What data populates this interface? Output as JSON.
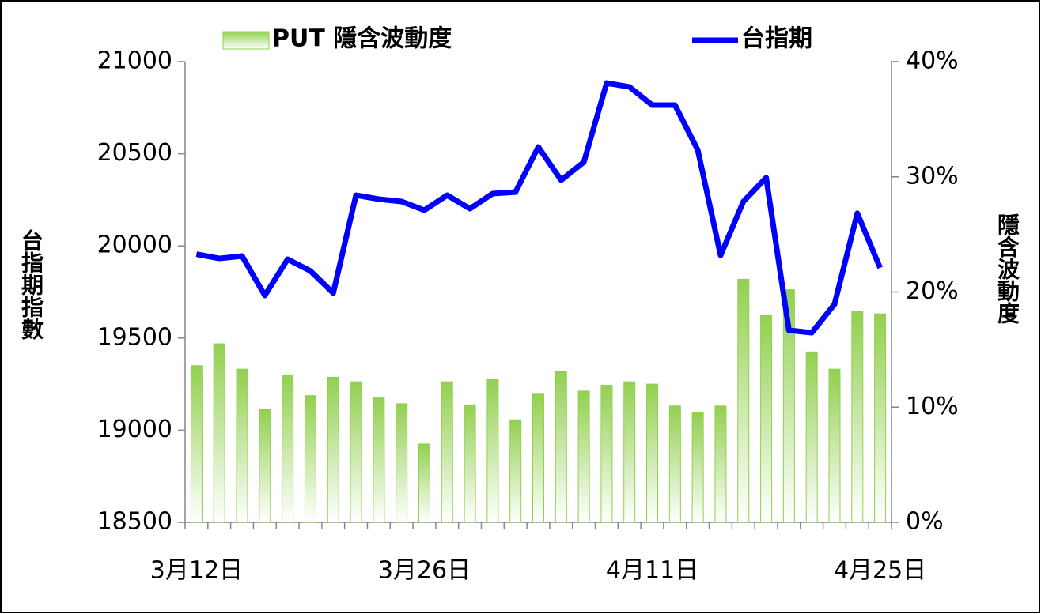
{
  "chart_data": {
    "type": "bar_line",
    "categories": [
      "3月12日",
      null,
      null,
      null,
      null,
      null,
      null,
      null,
      null,
      null,
      "3月26日",
      null,
      null,
      null,
      null,
      null,
      null,
      null,
      null,
      null,
      "4月11日",
      null,
      null,
      null,
      null,
      null,
      null,
      null,
      null,
      null,
      "4月25日"
    ],
    "series": [
      {
        "name": "PUT 隱含波動度",
        "color": "#92d050",
        "axis": "y2",
        "type": "bar",
        "values": [
          13.6,
          15.5,
          13.3,
          9.8,
          12.8,
          11.0,
          12.6,
          12.2,
          10.8,
          10.3,
          6.8,
          12.2,
          10.2,
          12.4,
          8.9,
          11.2,
          13.1,
          11.4,
          11.9,
          12.2,
          12.0,
          10.1,
          9.5,
          10.1,
          21.1,
          18.0,
          20.2,
          14.8,
          13.3,
          18.3,
          18.1
        ]
      },
      {
        "name": "台指期",
        "color": "#0000ff",
        "axis": "y",
        "type": "line",
        "values": [
          19955,
          19932,
          19945,
          19731,
          19928,
          19864,
          19744,
          20275,
          20254,
          20241,
          20194,
          20275,
          20202,
          20284,
          20292,
          20537,
          20357,
          20455,
          20884,
          20863,
          20764,
          20764,
          20520,
          19949,
          20241,
          20370,
          19542,
          19529,
          19684,
          20177,
          19881
        ]
      }
    ],
    "ylabel": "台指期指數",
    "y2label": "隱含波動度",
    "ylim": [
      18500,
      21000
    ],
    "yticks": [
      18500,
      19000,
      19500,
      20000,
      20500,
      21000
    ],
    "y2lim": [
      0,
      40
    ],
    "y2ticks": [
      {
        "value": 0,
        "label": "0%"
      },
      {
        "value": 10,
        "label": "10%"
      },
      {
        "value": 20,
        "label": "20%"
      },
      {
        "value": 30,
        "label": "30%"
      },
      {
        "value": 40,
        "label": "40%"
      }
    ]
  }
}
